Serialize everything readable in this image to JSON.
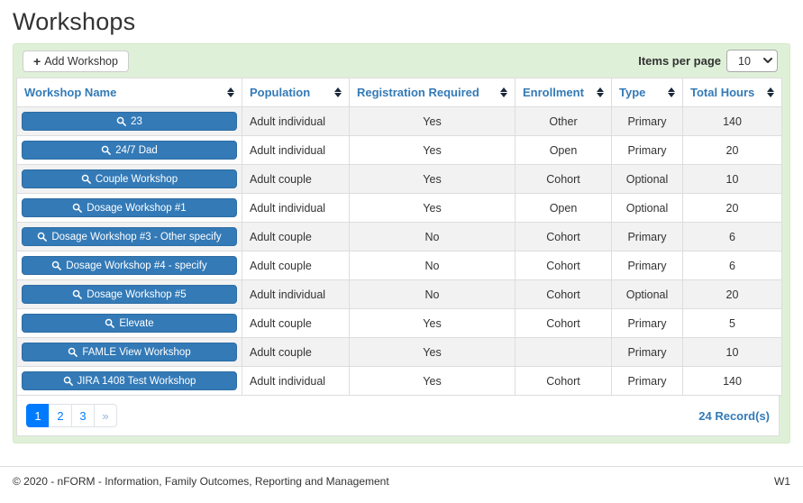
{
  "page": {
    "title": "Workshops"
  },
  "toolbar": {
    "add_button_label": "Add Workshop",
    "add_icon": "+",
    "items_per_page_label": "Items per page",
    "items_per_page_value": "10"
  },
  "table": {
    "columns": [
      {
        "label": "Workshop Name",
        "key": "name"
      },
      {
        "label": "Population",
        "key": "population"
      },
      {
        "label": "Registration Required",
        "key": "registration_required"
      },
      {
        "label": "Enrollment",
        "key": "enrollment"
      },
      {
        "label": "Type",
        "key": "type"
      },
      {
        "label": "Total Hours",
        "key": "total_hours"
      }
    ],
    "rows": [
      {
        "name": "23",
        "population": "Adult individual",
        "registration_required": "Yes",
        "enrollment": "Other",
        "type": "Primary",
        "total_hours": "140"
      },
      {
        "name": "24/7 Dad",
        "population": "Adult individual",
        "registration_required": "Yes",
        "enrollment": "Open",
        "type": "Primary",
        "total_hours": "20"
      },
      {
        "name": "Couple Workshop",
        "population": "Adult couple",
        "registration_required": "Yes",
        "enrollment": "Cohort",
        "type": "Optional",
        "total_hours": "10"
      },
      {
        "name": "Dosage Workshop #1",
        "population": "Adult individual",
        "registration_required": "Yes",
        "enrollment": "Open",
        "type": "Optional",
        "total_hours": "20"
      },
      {
        "name": "Dosage Workshop #3 - Other specify",
        "population": "Adult couple",
        "registration_required": "No",
        "enrollment": "Cohort",
        "type": "Primary",
        "total_hours": "6"
      },
      {
        "name": "Dosage Workshop #4 - specify",
        "population": "Adult couple",
        "registration_required": "No",
        "enrollment": "Cohort",
        "type": "Primary",
        "total_hours": "6"
      },
      {
        "name": "Dosage Workshop #5",
        "population": "Adult individual",
        "registration_required": "No",
        "enrollment": "Cohort",
        "type": "Optional",
        "total_hours": "20"
      },
      {
        "name": "Elevate",
        "population": "Adult couple",
        "registration_required": "Yes",
        "enrollment": "Cohort",
        "type": "Primary",
        "total_hours": "5"
      },
      {
        "name": "FAMLE View Workshop",
        "population": "Adult couple",
        "registration_required": "Yes",
        "enrollment": "",
        "type": "Primary",
        "total_hours": "10"
      },
      {
        "name": "JIRA 1408 Test Workshop",
        "population": "Adult individual",
        "registration_required": "Yes",
        "enrollment": "Cohort",
        "type": "Primary",
        "total_hours": "140"
      }
    ]
  },
  "pagination": {
    "pages": [
      "1",
      "2",
      "3"
    ],
    "active_page": "1",
    "next_label": "»",
    "records_label": "24 Record(s)"
  },
  "footer": {
    "copyright": "© 2020 - nFORM - Information, Family Outcomes, Reporting and Management",
    "environment": "W1"
  },
  "colors": {
    "accent_blue": "#337ab7",
    "pagination_blue": "#007bff",
    "panel_green": "#dff0d8"
  }
}
